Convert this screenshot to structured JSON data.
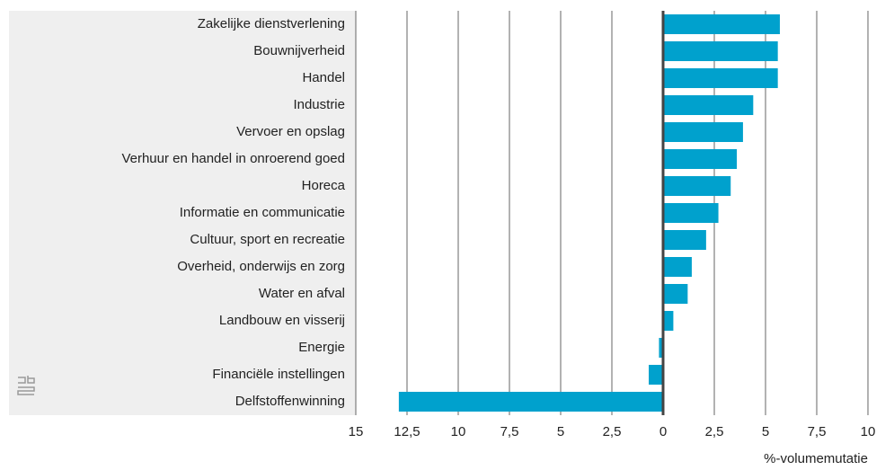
{
  "chart_data": {
    "type": "barh",
    "x_label": "%-volumemutatie",
    "categories": [
      "Zakelijke dienstverlening",
      "Bouwnijverheid",
      "Handel",
      "Industrie",
      "Vervoer en opslag",
      "Verhuur en handel in onroerend goed",
      "Horeca",
      "Informatie en communicatie",
      "Cultuur, sport en recreatie",
      "Overheid, onderwijs en zorg",
      "Water en afval",
      "Landbouw en visserij",
      "Energie",
      "Financiële instellingen",
      "Delfstoffenwinning"
    ],
    "values": [
      5.7,
      5.6,
      5.6,
      4.4,
      3.9,
      3.6,
      3.3,
      2.7,
      2.1,
      1.4,
      1.2,
      0.5,
      -0.2,
      -0.7,
      -12.9
    ],
    "color": "#00a1cd",
    "xlim": [
      -15,
      10
    ],
    "xticks": [
      {
        "value": -15,
        "label": "15"
      },
      {
        "value": -12.5,
        "label": "12,5"
      },
      {
        "value": -10,
        "label": "10"
      },
      {
        "value": -7.5,
        "label": "7,5"
      },
      {
        "value": -5,
        "label": "5"
      },
      {
        "value": -2.5,
        "label": "2,5"
      },
      0,
      {
        "value": 2.5,
        "label": "2,5"
      },
      5,
      {
        "value": 7.5,
        "label": "7,5"
      },
      10
    ],
    "grid": true
  }
}
